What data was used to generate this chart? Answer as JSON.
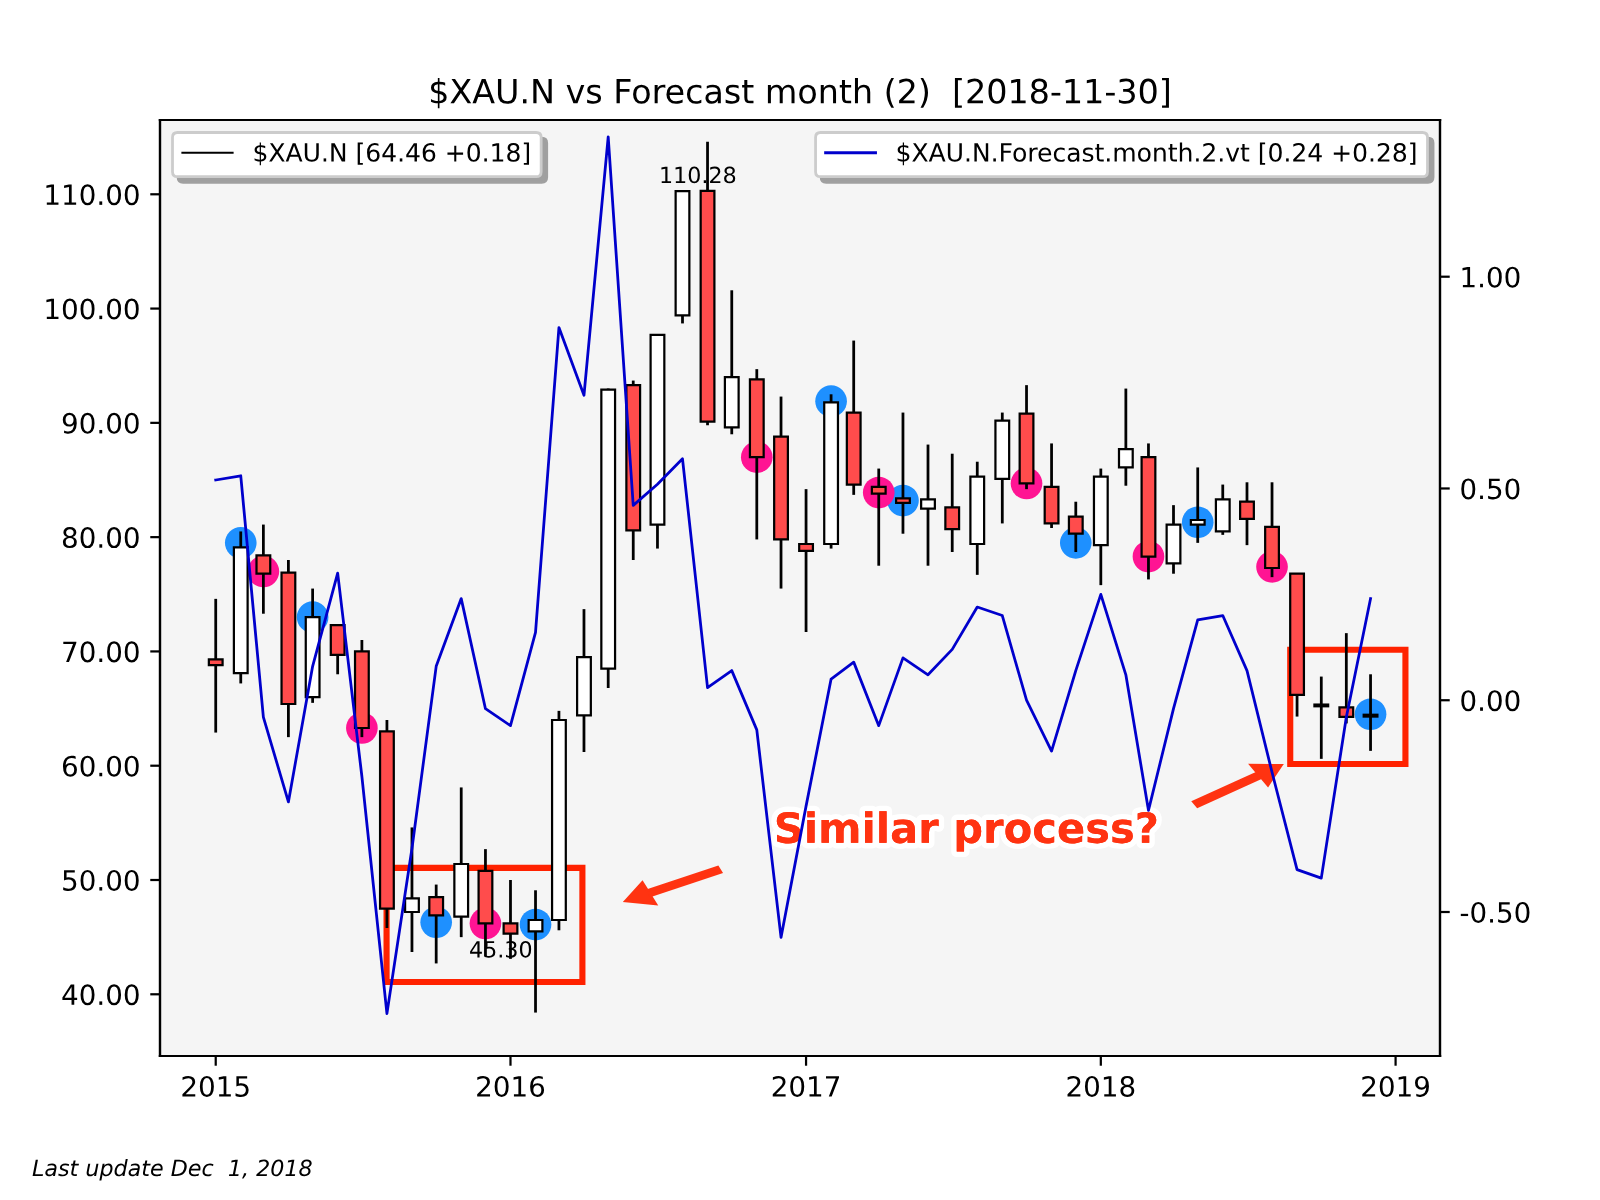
{
  "chart_data": {
    "type": "candlestick",
    "title": "$XAU.N vs Forecast month (2)  [2018-11-30]",
    "x": [
      "2015-01-01",
      "2015-02-01",
      "2015-03-01",
      "2015-04-01",
      "2015-05-01",
      "2015-06-01",
      "2015-07-01",
      "2015-08-01",
      "2015-09-01",
      "2015-10-01",
      "2015-11-01",
      "2015-12-01",
      "2016-01-01",
      "2016-02-01",
      "2016-03-01",
      "2016-04-01",
      "2016-05-01",
      "2016-06-01",
      "2016-07-01",
      "2016-08-01",
      "2016-09-01",
      "2016-10-01",
      "2016-11-01",
      "2016-12-01",
      "2017-01-01",
      "2017-02-01",
      "2017-03-01",
      "2017-04-01",
      "2017-05-01",
      "2017-06-01",
      "2017-07-01",
      "2017-08-01",
      "2017-09-01",
      "2017-10-01",
      "2017-11-01",
      "2017-12-01",
      "2018-01-01",
      "2018-02-01",
      "2018-03-01",
      "2018-04-01",
      "2018-05-01",
      "2018-06-01",
      "2018-07-01",
      "2018-08-01",
      "2018-09-01",
      "2018-10-01",
      "2018-11-01",
      "2018-12-01"
    ],
    "series": [
      {
        "name": "$XAU.N [64.46 +0.18]",
        "type": "candlestick",
        "color": "#000000",
        "colors": [
          "#ff4c4c",
          "#ffffff",
          "#ff4c4c",
          "#ff4c4c",
          "#ffffff",
          "#ff4c4c",
          "#ff4c4c",
          "#ff4c4c",
          "#ffffff",
          "#ff4c4c",
          "#ffffff",
          "#ff4c4c",
          "#ff4c4c",
          "#ffffff",
          "#ffffff",
          "#ffffff",
          "#ffffff",
          "#ff4c4c",
          "#ffffff",
          "#ffffff",
          "#ff4c4c",
          "#ffffff",
          "#ff4c4c",
          "#ff4c4c",
          "#ff4c4c",
          "#ffffff",
          "#ff4c4c",
          "#ff4c4c",
          "#ff4c4c",
          "#ffffff",
          "#ff4c4c",
          "#ffffff",
          "#ffffff",
          "#ff4c4c",
          "#ff4c4c",
          "#ff4c4c",
          "#ffffff",
          "#ffffff",
          "#ff4c4c",
          "#ffffff",
          "#ffffff",
          "#ffffff",
          "#ff4c4c",
          "#ff4c4c",
          "#ff4c4c",
          "#ff4c4c",
          "#ff4c4c",
          "#ffffff"
        ],
        "ohlc": [
          [
            69.3,
            74.6,
            62.9,
            68.8
          ],
          [
            68.1,
            80.5,
            67.2,
            79.1
          ],
          [
            78.4,
            81.1,
            73.3,
            76.8
          ],
          [
            76.9,
            78.0,
            62.5,
            65.4
          ],
          [
            66.0,
            75.5,
            65.5,
            73.0
          ],
          [
            72.3,
            72.3,
            68.0,
            69.7
          ],
          [
            70.0,
            71.0,
            62.5,
            63.3
          ],
          [
            63.0,
            64.0,
            45.8,
            47.5
          ],
          [
            47.2,
            54.6,
            43.7,
            48.4
          ],
          [
            48.5,
            49.6,
            42.7,
            46.9
          ],
          [
            46.8,
            58.1,
            45.0,
            51.4
          ],
          [
            50.8,
            52.7,
            43.3,
            46.2
          ],
          [
            46.2,
            50.0,
            43.1,
            45.3
          ],
          [
            45.5,
            49.1,
            38.4,
            46.5
          ],
          [
            46.5,
            64.8,
            45.6,
            64.0
          ],
          [
            64.4,
            73.7,
            61.2,
            69.5
          ],
          [
            68.5,
            93.0,
            66.8,
            92.9
          ],
          [
            93.3,
            93.7,
            78.0,
            80.6
          ],
          [
            81.1,
            97.7,
            79.0,
            97.7
          ],
          [
            99.4,
            110.3,
            98.7,
            110.28
          ],
          [
            110.3,
            114.6,
            89.8,
            90.1
          ],
          [
            89.6,
            101.6,
            89.0,
            94.0
          ],
          [
            93.8,
            94.7,
            79.8,
            87.0
          ],
          [
            88.8,
            92.3,
            75.5,
            79.8
          ],
          [
            79.4,
            84.2,
            71.7,
            78.8
          ],
          [
            79.4,
            92.5,
            79.0,
            91.8
          ],
          [
            90.9,
            97.2,
            83.7,
            84.6
          ],
          [
            84.4,
            86.0,
            77.5,
            83.8
          ],
          [
            83.4,
            90.9,
            80.3,
            83.0
          ],
          [
            82.5,
            88.1,
            77.5,
            83.3
          ],
          [
            82.6,
            87.3,
            78.7,
            80.7
          ],
          [
            79.4,
            86.6,
            76.7,
            85.3
          ],
          [
            85.1,
            90.9,
            81.2,
            90.2
          ],
          [
            90.8,
            93.3,
            84.2,
            84.7
          ],
          [
            84.4,
            88.2,
            80.8,
            81.2
          ],
          [
            81.8,
            83.1,
            78.7,
            80.3
          ],
          [
            79.3,
            86.0,
            75.8,
            85.3
          ],
          [
            86.1,
            93.0,
            84.5,
            87.7
          ],
          [
            87.0,
            88.2,
            76.3,
            78.3
          ],
          [
            77.7,
            82.8,
            76.8,
            81.1
          ],
          [
            81.1,
            86.1,
            79.5,
            81.5
          ],
          [
            80.5,
            84.6,
            80.2,
            83.3
          ],
          [
            83.1,
            84.8,
            79.3,
            81.6
          ],
          [
            80.9,
            84.8,
            76.5,
            77.3
          ],
          [
            76.8,
            76.8,
            64.3,
            66.2
          ],
          [
            65.3,
            67.8,
            60.6,
            65.2
          ],
          [
            65.1,
            71.6,
            63.7,
            64.28
          ],
          [
            64.3,
            68.0,
            61.3,
            64.46
          ]
        ]
      },
      {
        "name": "$XAU.N.Forecast.month.2.vt [0.24 +0.28]",
        "type": "line",
        "axis": "y2",
        "color": "#0000cc",
        "values": [
          0.52,
          0.53,
          -0.04,
          -0.24,
          0.08,
          0.3,
          -0.18,
          -0.74,
          -0.35,
          0.08,
          0.24,
          -0.02,
          -0.06,
          0.16,
          0.88,
          0.72,
          1.33,
          0.46,
          0.51,
          0.57,
          0.03,
          0.07,
          -0.07,
          -0.56,
          -0.25,
          0.05,
          0.09,
          -0.06,
          0.1,
          0.06,
          0.12,
          0.22,
          0.2,
          0.0,
          -0.12,
          0.07,
          0.25,
          0.06,
          -0.26,
          -0.02,
          0.19,
          0.2,
          0.07,
          -0.17,
          -0.4,
          -0.42,
          -0.04,
          0.24
        ]
      },
      {
        "type": "scatter",
        "marker": "circle",
        "color": "#1e90ff",
        "x": [
          "2015-02-01",
          "2015-05-01",
          "2015-10-01",
          "2016-02-01",
          "2017-02-01",
          "2017-05-01",
          "2017-12-01",
          "2018-05-01",
          "2018-12-01"
        ],
        "values": [
          79.5,
          73.0,
          46.3,
          46.1,
          91.9,
          83.2,
          79.5,
          81.3,
          64.5
        ]
      },
      {
        "type": "scatter",
        "marker": "circle",
        "color": "#ff1493",
        "x": [
          "2015-03-01",
          "2015-07-01",
          "2015-12-01",
          "2016-11-01",
          "2017-04-01",
          "2017-10-01",
          "2018-03-01",
          "2018-08-01"
        ],
        "values": [
          77.0,
          63.3,
          46.2,
          87.0,
          83.9,
          84.7,
          78.3,
          77.4
        ]
      }
    ],
    "xlim": [
      "2014-10-24",
      "2019-02-25"
    ],
    "xticks": [
      {
        "value": "2015-01-01",
        "label": "2015"
      },
      {
        "value": "2016-01-01",
        "label": "2016"
      },
      {
        "value": "2017-01-01",
        "label": "2017"
      },
      {
        "value": "2018-01-01",
        "label": "2018"
      },
      {
        "value": "2019-01-01",
        "label": "2019"
      }
    ],
    "ylim": [
      34.6,
      116.5
    ],
    "yticks": [
      {
        "value": 40,
        "label": "40.00"
      },
      {
        "value": 50,
        "label": "50.00"
      },
      {
        "value": 60,
        "label": "60.00"
      },
      {
        "value": 70,
        "label": "70.00"
      },
      {
        "value": 80,
        "label": "80.00"
      },
      {
        "value": 90,
        "label": "90.00"
      },
      {
        "value": 100,
        "label": "100.00"
      },
      {
        "value": 110,
        "label": "110.00"
      }
    ],
    "y2lim": [
      -0.84,
      1.37
    ],
    "y2ticks": [
      {
        "value": -0.5,
        "label": "-0.50"
      },
      {
        "value": 0,
        "label": "0.00"
      },
      {
        "value": 0.5,
        "label": "0.50"
      },
      {
        "value": 1,
        "label": "1.00"
      }
    ],
    "annotations": [
      {
        "text": "110.28",
        "x": "2016-09-01",
        "y": 110.28
      },
      {
        "text": "45.30",
        "x": "2016-01-01",
        "y": 45.3
      },
      "Similar process?",
      "Last update Dec  1, 2018"
    ],
    "grid": false,
    "legend": "top",
    "marker": "none"
  }
}
